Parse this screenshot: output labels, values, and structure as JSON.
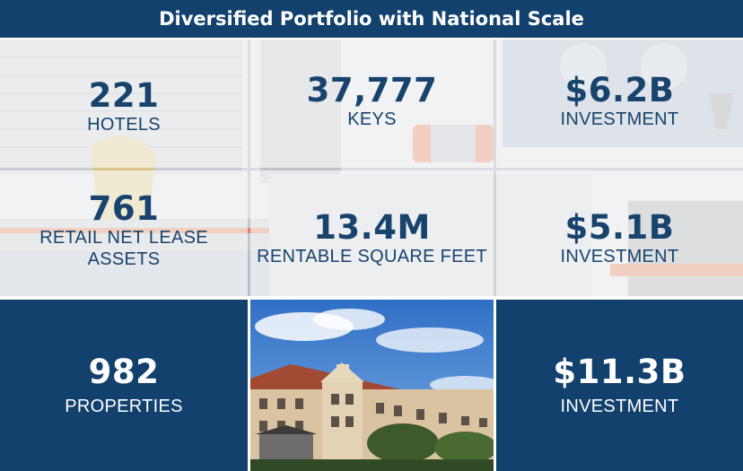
{
  "banner": {
    "title": "Diversified Portfolio with National Scale"
  },
  "tiles": [
    {
      "value": "221",
      "label": "HOTELS"
    },
    {
      "value": "37,777",
      "label": "KEYS"
    },
    {
      "value": "$6.2B",
      "label": "INVESTMENT"
    },
    {
      "value": "761",
      "label_line1": "RETAIL NET LEASE",
      "label_line2": "ASSETS"
    },
    {
      "value": "13.4M",
      "label": "RENTABLE SQUARE FEET"
    },
    {
      "value": "$5.1B",
      "label": "INVESTMENT"
    },
    {
      "value": "982",
      "label": "PROPERTIES"
    },
    {
      "value": "$11.3B",
      "label": "INVESTMENT"
    }
  ],
  "colors": {
    "navy": "#12416e",
    "accent_orange": "#e8825a"
  }
}
